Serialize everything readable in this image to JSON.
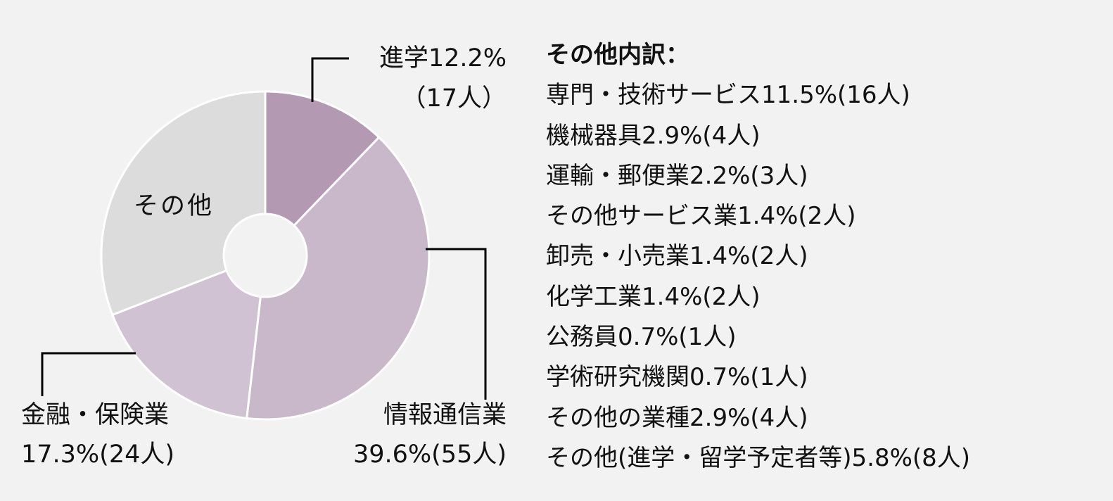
{
  "chart_data": {
    "type": "pie",
    "donut": true,
    "start": "top, clockwise",
    "slices": [
      {
        "name": "進学",
        "percent": 12.2,
        "count": 17,
        "color": "#b39ab2",
        "label_line1": "進学12.2%",
        "label_line2": "（17人）"
      },
      {
        "name": "情報通信業",
        "percent": 39.6,
        "count": 55,
        "color": "#c9b7ca",
        "label_line1": "情報通信業",
        "label_line2": "39.6%(55人)"
      },
      {
        "name": "金融・保険業",
        "percent": 17.3,
        "count": 24,
        "color": "#d1c2d3",
        "label_line1": "金融・保険業",
        "label_line2": "17.3%(24人)"
      },
      {
        "name": "その他",
        "percent": 30.9,
        "color": "#dcdcdc",
        "label_line1": "その他"
      }
    ]
  },
  "breakdown": {
    "title": "その他内訳：",
    "items": [
      "専門・技術サービス11.5%(16人)",
      "機械器具2.9%(4人)",
      "運輸・郵便業2.2%(3人)",
      "その他サービス業1.4%(2人)",
      "卸売・小売業1.4%(2人)",
      "化学工業1.4%(2人)",
      "公務員0.7%(1人)",
      "学術研究機関0.7%(1人)",
      "その他の業種2.9%(4人)",
      "その他(進学・留学予定者等)5.8%(8人)"
    ]
  }
}
